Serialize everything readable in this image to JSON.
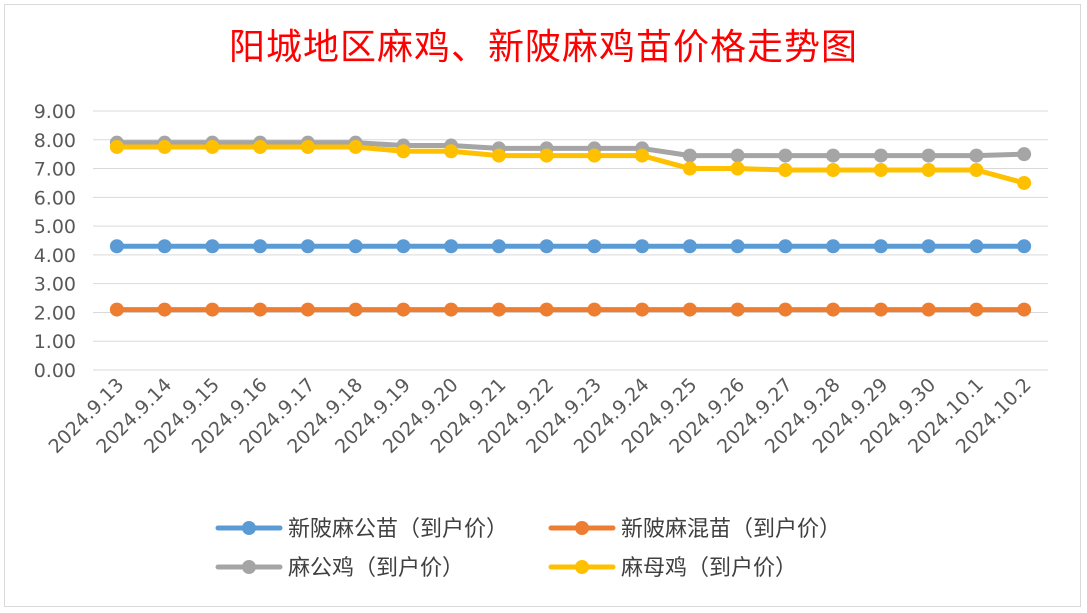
{
  "chart_data": {
    "type": "line",
    "title": "阳城地区麻鸡、新陂麻鸡苗价格走势图",
    "xlabel": "",
    "ylabel": "",
    "ylim": [
      0,
      9
    ],
    "yticks": [
      "0.00",
      "1.00",
      "2.00",
      "3.00",
      "4.00",
      "5.00",
      "6.00",
      "7.00",
      "8.00",
      "9.00"
    ],
    "grid": true,
    "legend_position": "bottom",
    "categories": [
      "2024.9.13",
      "2024.9.14",
      "2024.9.15",
      "2024.9.16",
      "2024.9.17",
      "2024.9.18",
      "2024.9.19",
      "2024.9.20",
      "2024.9.21",
      "2024.9.22",
      "2024.9.23",
      "2024.9.24",
      "2024.9.25",
      "2024.9.26",
      "2024.9.27",
      "2024.9.28",
      "2024.9.29",
      "2024.9.30",
      "2024.10.1",
      "2024.10.2"
    ],
    "series": [
      {
        "name": "新陂麻公苗（到户价）",
        "color": "#5b9bd5",
        "values": [
          4.3,
          4.3,
          4.3,
          4.3,
          4.3,
          4.3,
          4.3,
          4.3,
          4.3,
          4.3,
          4.3,
          4.3,
          4.3,
          4.3,
          4.3,
          4.3,
          4.3,
          4.3,
          4.3,
          4.3
        ]
      },
      {
        "name": "新陂麻混苗（到户价）",
        "color": "#ed7d31",
        "values": [
          2.1,
          2.1,
          2.1,
          2.1,
          2.1,
          2.1,
          2.1,
          2.1,
          2.1,
          2.1,
          2.1,
          2.1,
          2.1,
          2.1,
          2.1,
          2.1,
          2.1,
          2.1,
          2.1,
          2.1
        ]
      },
      {
        "name": "麻公鸡（到户价）",
        "color": "#a5a5a5",
        "values": [
          7.9,
          7.9,
          7.9,
          7.9,
          7.9,
          7.9,
          7.8,
          7.8,
          7.7,
          7.7,
          7.7,
          7.7,
          7.45,
          7.45,
          7.45,
          7.45,
          7.45,
          7.45,
          7.45,
          7.5
        ]
      },
      {
        "name": "麻母鸡（到户价）",
        "color": "#ffc000",
        "values": [
          7.75,
          7.75,
          7.75,
          7.75,
          7.75,
          7.75,
          7.6,
          7.6,
          7.45,
          7.45,
          7.45,
          7.45,
          7.0,
          7.0,
          6.95,
          6.95,
          6.95,
          6.95,
          6.95,
          6.5
        ]
      }
    ]
  }
}
